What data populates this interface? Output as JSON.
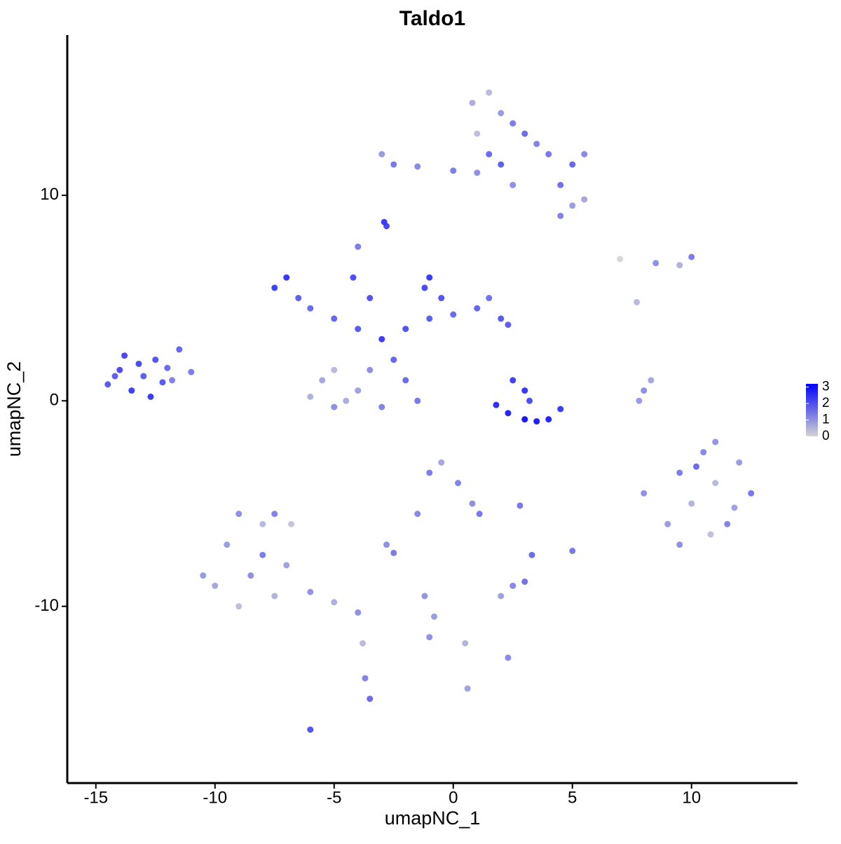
{
  "chart_data": {
    "type": "scatter",
    "title": "Taldo1",
    "x_label": "umapNC_1",
    "y_label": "umapNC_2",
    "x": [
      -14.5,
      -14,
      -13.5,
      -13,
      -12.5,
      -12,
      -11.5,
      -11,
      -13.8,
      -12.7,
      -14.2,
      -12.2,
      -13.2,
      -11.8,
      -7.5,
      -7,
      -6.5,
      -6,
      -5,
      -4,
      -3,
      -2,
      -1,
      0,
      1,
      2,
      2.3,
      1.5,
      -1,
      -1.2,
      -0.5,
      -4,
      -4.2,
      -3.5,
      -2.5,
      -3.5,
      -5.5,
      -6,
      -5,
      -4,
      -5,
      -4.5,
      -3,
      -2,
      -1.5,
      -3,
      -2.5,
      -1.5,
      0,
      1,
      1.5,
      0.8,
      1.5,
      2,
      2.5,
      3,
      3.5,
      4,
      5,
      5.5,
      4.5,
      5,
      5.5,
      4.5,
      2.5,
      1,
      2,
      -2.9,
      -2.8,
      1.8,
      2.3,
      3,
      3.5,
      4,
      4.5,
      2.5,
      3,
      3.2,
      7.8,
      8,
      8.3,
      7,
      8.5,
      9.5,
      10,
      7.7,
      8,
      9,
      9.5,
      10,
      10.5,
      11,
      11.5,
      12,
      12.5,
      10.8,
      9.5,
      11,
      10.2,
      11.8,
      -10,
      -9.5,
      -9,
      -8,
      -7.5,
      -8.5,
      -7.5,
      -9,
      -10.5,
      -8,
      -7,
      -6,
      -5,
      -4,
      -6.8,
      -3.8,
      -1,
      -0.5,
      0.2,
      0.8,
      1.1,
      -1.5,
      -2.8,
      -2.5,
      2.8,
      3.3,
      2,
      3,
      2.5,
      5,
      -1,
      -0.8,
      0.5,
      2.3,
      -3.5,
      -3.7,
      -6,
      0.6,
      -1.2
    ],
    "y": [
      0.8,
      1.5,
      0.5,
      1.2,
      2,
      1.6,
      2.5,
      1.4,
      2.2,
      0.2,
      1.2,
      0.9,
      1.8,
      1.0,
      5.5,
      6,
      5,
      4.5,
      4,
      3.5,
      3,
      3.5,
      4,
      4.2,
      4.5,
      4,
      3.7,
      5,
      6,
      5.5,
      5,
      7.5,
      6,
      5,
      2,
      1.5,
      1,
      0.2,
      -0.3,
      0.5,
      1.5,
      0,
      -0.3,
      1,
      0,
      12,
      11.5,
      11.4,
      11.2,
      11.1,
      12,
      14.5,
      15,
      14,
      13.5,
      13,
      12.5,
      12,
      11.5,
      12,
      10.5,
      9.5,
      9.8,
      9,
      10.5,
      13,
      11.5,
      8.7,
      8.5,
      -0.2,
      -0.6,
      -0.9,
      -1,
      -0.9,
      -0.4,
      1,
      0.5,
      0,
      0,
      0.5,
      1,
      6.9,
      6.7,
      6.6,
      7,
      4.8,
      -4.5,
      -6,
      -3.5,
      -5,
      -2.5,
      -4,
      -6,
      -3,
      -4.5,
      -6.5,
      -7,
      -2,
      -3.2,
      -5.2,
      -9,
      -7,
      -5.5,
      -6,
      -5.5,
      -8.5,
      -9.5,
      -10,
      -8.5,
      -7.5,
      -8,
      -9.3,
      -9.8,
      -10.3,
      -6,
      -11.8,
      -3.5,
      -3,
      -4,
      -5,
      -5.5,
      -5.5,
      -7,
      -7.4,
      -5.1,
      -7.5,
      -9.5,
      -8.8,
      -9,
      -7.3,
      -11.5,
      -10.5,
      -11.8,
      -12.5,
      -14.5,
      -13.5,
      -16,
      -14,
      -9.5
    ],
    "values": [
      2.1,
      2.3,
      2.5,
      2,
      2.2,
      1.8,
      1.9,
      1.5,
      2.4,
      2.6,
      2,
      2.1,
      2.3,
      1.4,
      2.5,
      2.7,
      2,
      1.8,
      1.9,
      2.1,
      2.6,
      2.2,
      2,
      1.8,
      1.9,
      2.1,
      2,
      1.7,
      2.6,
      2.4,
      2.2,
      1.5,
      2.3,
      2.2,
      1.9,
      1.2,
      0.8,
      0.6,
      1.2,
      0.9,
      0.5,
      0.7,
      1.4,
      1.8,
      1.6,
      1,
      1.6,
      1.3,
      1.5,
      1.2,
      1.8,
      0.7,
      0.5,
      1,
      1.5,
      1.8,
      1.4,
      1.6,
      1.9,
      1.3,
      1.7,
      1,
      0.8,
      1.4,
      1.2,
      0.4,
      2,
      2.6,
      2.4,
      2.8,
      3,
      3.2,
      3.1,
      3,
      2.6,
      2.5,
      2.7,
      2.3,
      1,
      1.2,
      0.8,
      0,
      1.2,
      0.6,
      1.5,
      0.5,
      1.2,
      1,
      1.5,
      0.6,
      1.3,
      0.5,
      1.4,
      1,
      1.6,
      0.4,
      1.2,
      1.1,
      1.8,
      0.9,
      0.8,
      1,
      1.2,
      0.5,
      1.4,
      1.2,
      0.6,
      0.4,
      1,
      1.5,
      0.9,
      1.1,
      0.7,
      1.2,
      0.3,
      0.5,
      1.5,
      0.8,
      1.4,
      1.2,
      1.6,
      1.3,
      1.2,
      1.5,
      1.6,
      1.8,
      0.9,
      1.7,
      1.3,
      1.6,
      1.2,
      1,
      0.6,
      1.3,
      1.8,
      1.4,
      2.2,
      0.9,
      1.1
    ],
    "colors": [
      "#d3d3d3",
      "#0000ff"
    ],
    "color_lim": [
      0,
      3.2
    ],
    "colorbar_ticks": [
      0,
      1,
      2,
      3
    ],
    "xlim": [
      -16.2,
      14.45
    ],
    "ylim": [
      -18.6,
      17.8
    ],
    "xticks": [
      -15,
      -10,
      -5,
      0,
      5,
      10
    ],
    "yticks": [
      -10,
      0,
      10
    ]
  }
}
